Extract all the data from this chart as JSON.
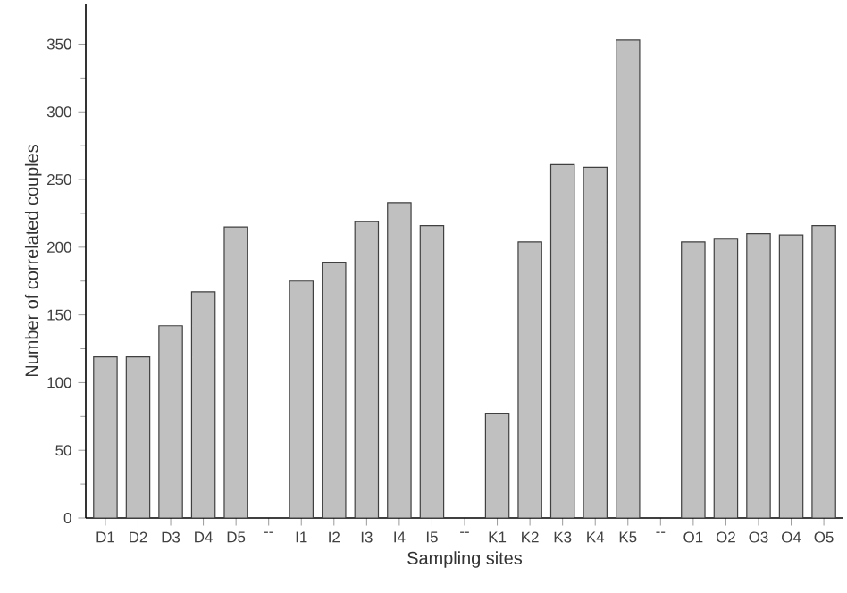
{
  "chart_data": {
    "type": "bar",
    "xlabel": "Sampling sites",
    "ylabel": "Number of correlated couples",
    "categories": [
      "D1",
      "D2",
      "D3",
      "D4",
      "D5",
      "--",
      "I1",
      "I2",
      "I3",
      "I4",
      "I5",
      "--",
      "K1",
      "K2",
      "K3",
      "K4",
      "K5",
      "--",
      "O1",
      "O2",
      "O3",
      "O4",
      "O5"
    ],
    "values": [
      119,
      119,
      142,
      167,
      215,
      null,
      175,
      189,
      219,
      233,
      216,
      null,
      77,
      204,
      261,
      259,
      353,
      null,
      204,
      206,
      210,
      209,
      216
    ],
    "color": "#c0c0c0",
    "ylim": [
      0,
      380
    ],
    "yticks": [
      0,
      50,
      100,
      150,
      200,
      250,
      300,
      350
    ]
  }
}
